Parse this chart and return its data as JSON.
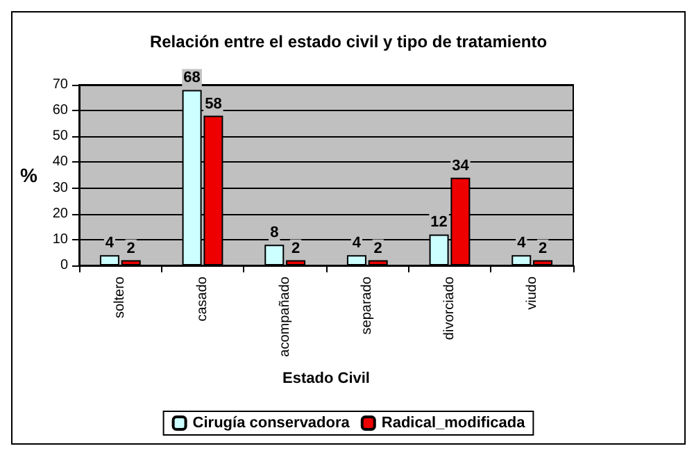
{
  "chart_data": {
    "type": "bar",
    "title": "Relación entre el estado civil y tipo de tratamiento",
    "xlabel": "Estado Civil",
    "ylabel": "%",
    "categories": [
      "soltero",
      "casado",
      "acompañado",
      "separado",
      "divorciado",
      "viudo"
    ],
    "series": [
      {
        "name": "Cirugía conservadora",
        "color": "#ccffff",
        "values": [
          4,
          68,
          8,
          4,
          12,
          4
        ]
      },
      {
        "name": "Radical_modificada",
        "color": "#ee0000",
        "values": [
          2,
          58,
          2,
          2,
          34,
          2
        ]
      }
    ],
    "ylim": [
      0,
      70
    ],
    "yticks": [
      0,
      10,
      20,
      30,
      40,
      50,
      60,
      70
    ],
    "grid": "y",
    "legend": "bottom",
    "data_labels": true
  }
}
